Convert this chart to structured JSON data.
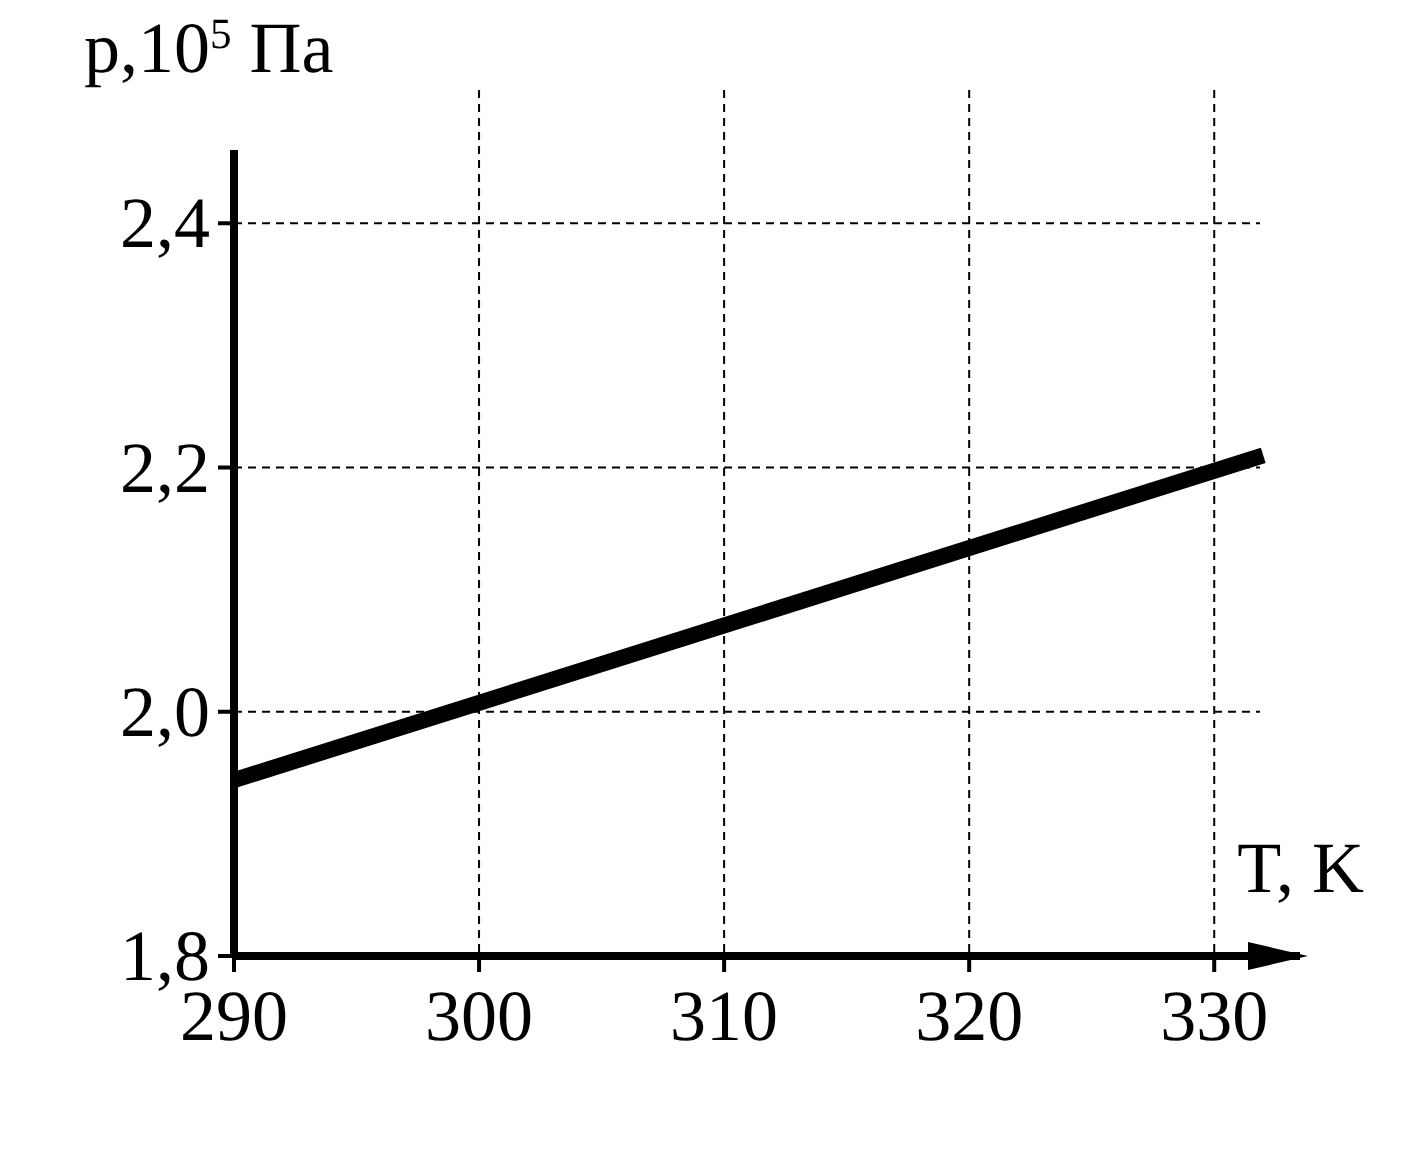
{
  "chart_data": {
    "type": "line",
    "xlabel": "T, K",
    "ylabel": "p,10$^{5}$ Па",
    "x": [
      290,
      332
    ],
    "series": [
      {
        "color": "#000000",
        "values": [
          1.944,
          2.21
        ]
      }
    ],
    "xlim": [
      290,
      333.5
    ],
    "ylim": [
      1.8,
      2.46
    ],
    "xticks": [
      290,
      300,
      310,
      320,
      330
    ],
    "yticks": [
      {
        "value": 1.8,
        "label": "1,8"
      },
      {
        "value": 2.0,
        "label": "2,0"
      },
      {
        "value": 2.2,
        "label": "2,2"
      },
      {
        "value": 2.4,
        "label": "2,4"
      }
    ],
    "grid": true
  }
}
